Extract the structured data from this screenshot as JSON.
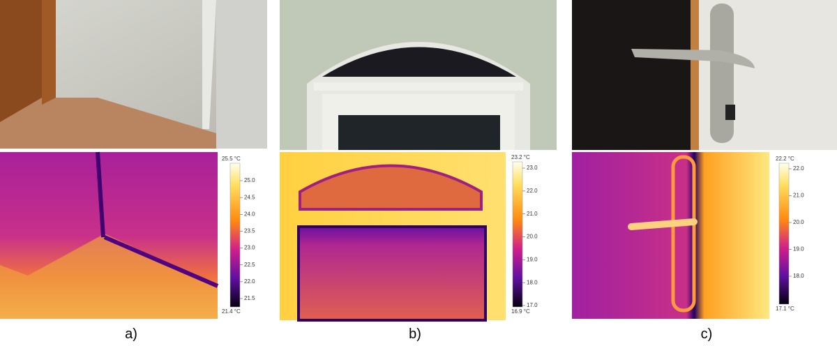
{
  "panels": [
    {
      "label": "a)",
      "scale": {
        "max": "25.5 °C",
        "min": "21.4 °C",
        "ticks": [
          "25.0",
          "24.5",
          "24.0",
          "23.5",
          "23.0",
          "22.5",
          "22.0",
          "21.5"
        ]
      }
    },
    {
      "label": "b)",
      "scale": {
        "max": "23.2 °C",
        "min": "16.9 °C",
        "ticks": [
          "23.0",
          "22.0",
          "21.0",
          "20.0",
          "19.0",
          "18.0",
          "17.0"
        ]
      }
    },
    {
      "label": "c)",
      "scale": {
        "max": "22.2 °C",
        "min": "17.1 °C",
        "ticks": [
          "22.0",
          "21.0",
          "20.0",
          "19.0",
          "18.0"
        ]
      }
    }
  ]
}
